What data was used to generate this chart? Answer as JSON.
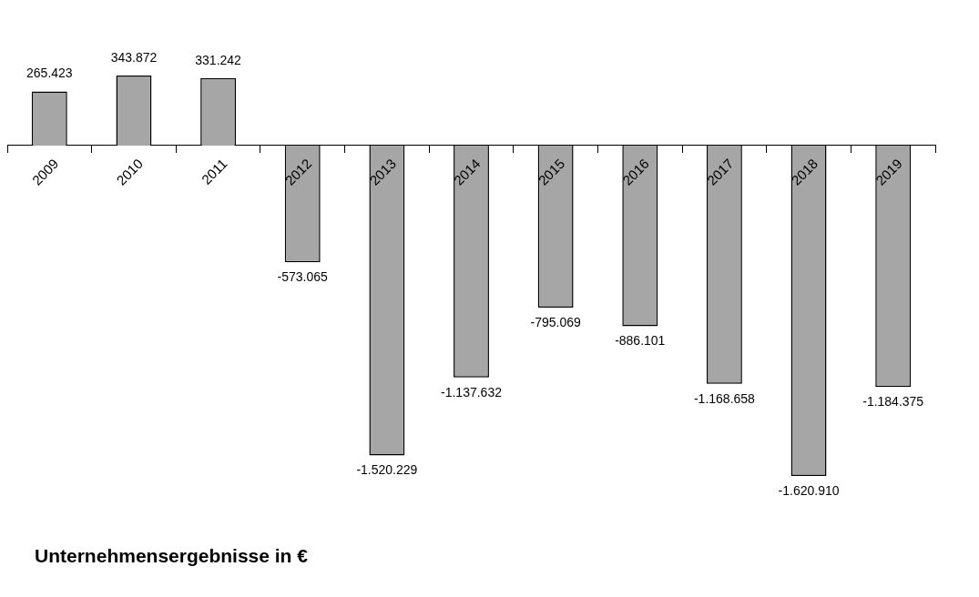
{
  "chart_data": {
    "type": "bar",
    "title": "Unternehmensergebnisse in €",
    "categories": [
      "2009",
      "2010",
      "2011",
      "2012",
      "2013",
      "2014",
      "2015",
      "2016",
      "2017",
      "2018",
      "2019"
    ],
    "values": [
      265423,
      343872,
      331242,
      -573065,
      -1520229,
      -1137632,
      -795069,
      -886101,
      -1168658,
      -1620910,
      -1184375
    ],
    "value_labels": [
      "265.423",
      "343.872",
      "331.242",
      "-573.065",
      "-1.520.229",
      "-1.137.632",
      "-795.069",
      "-886.101",
      "-1.168.658",
      "-1.620.910",
      "-1.184.375"
    ],
    "color": "#a6a6a6",
    "grid": false,
    "legend": false
  }
}
